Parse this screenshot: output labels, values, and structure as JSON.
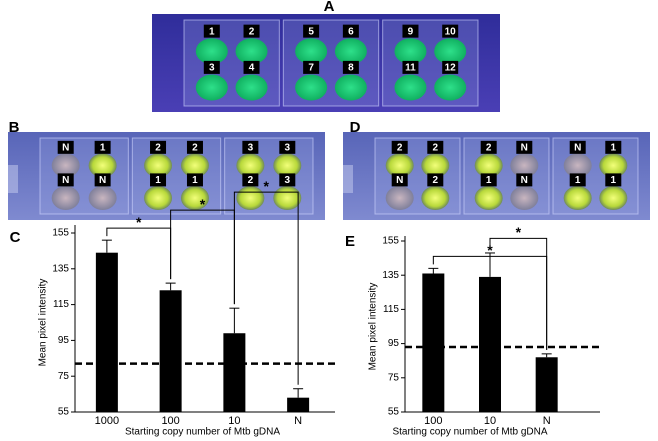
{
  "photos": [
    {
      "letter": "A",
      "wells": [
        "1",
        "2",
        "3",
        "4",
        "5",
        "6",
        "7",
        "8",
        "9",
        "10",
        "11",
        "12"
      ]
    },
    {
      "letter": "B",
      "wells": [
        "N",
        "1",
        "N",
        "N",
        "2",
        "2",
        "1",
        "1",
        "3",
        "3",
        "2",
        "3"
      ]
    },
    {
      "letter": "D",
      "wells": [
        "2",
        "2",
        "N",
        "2",
        "2",
        "N",
        "1",
        "N",
        "N",
        "1",
        "1",
        "1"
      ]
    }
  ],
  "chart_data": [
    {
      "type": "bar",
      "panel": "C",
      "categories": [
        "1000",
        "100",
        "10",
        "N"
      ],
      "values": [
        144,
        123,
        99,
        63
      ],
      "errors": [
        7,
        4,
        14,
        5
      ],
      "color": "#000000",
      "ylim": [
        55,
        155
      ],
      "yticks": [
        55,
        75,
        95,
        115,
        135,
        155
      ],
      "ylabel": "Mean pixel intensity",
      "xlabel": "Starting copy number of Mtb gDNA",
      "threshold": 82,
      "brackets": [
        {
          "from": 0,
          "to": 1,
          "label": "*"
        },
        {
          "from": 1,
          "to": 2,
          "label": "*"
        },
        {
          "from": 2,
          "to": 3,
          "label": "*"
        }
      ]
    },
    {
      "type": "bar",
      "panel": "E",
      "categories": [
        "100",
        "10",
        "N"
      ],
      "values": [
        136,
        134,
        87
      ],
      "errors": [
        3,
        14,
        2
      ],
      "color": "#000000",
      "ylim": [
        55,
        155
      ],
      "yticks": [
        55,
        75,
        95,
        115,
        135,
        155
      ],
      "ylabel": "Mean pixel intensity",
      "xlabel": "Starting copy number of Mtb gDNA",
      "threshold": 93,
      "brackets": [
        {
          "from": 0,
          "to": 2,
          "label": "*"
        },
        {
          "from": 1,
          "to": 2,
          "label": "*"
        }
      ]
    }
  ]
}
